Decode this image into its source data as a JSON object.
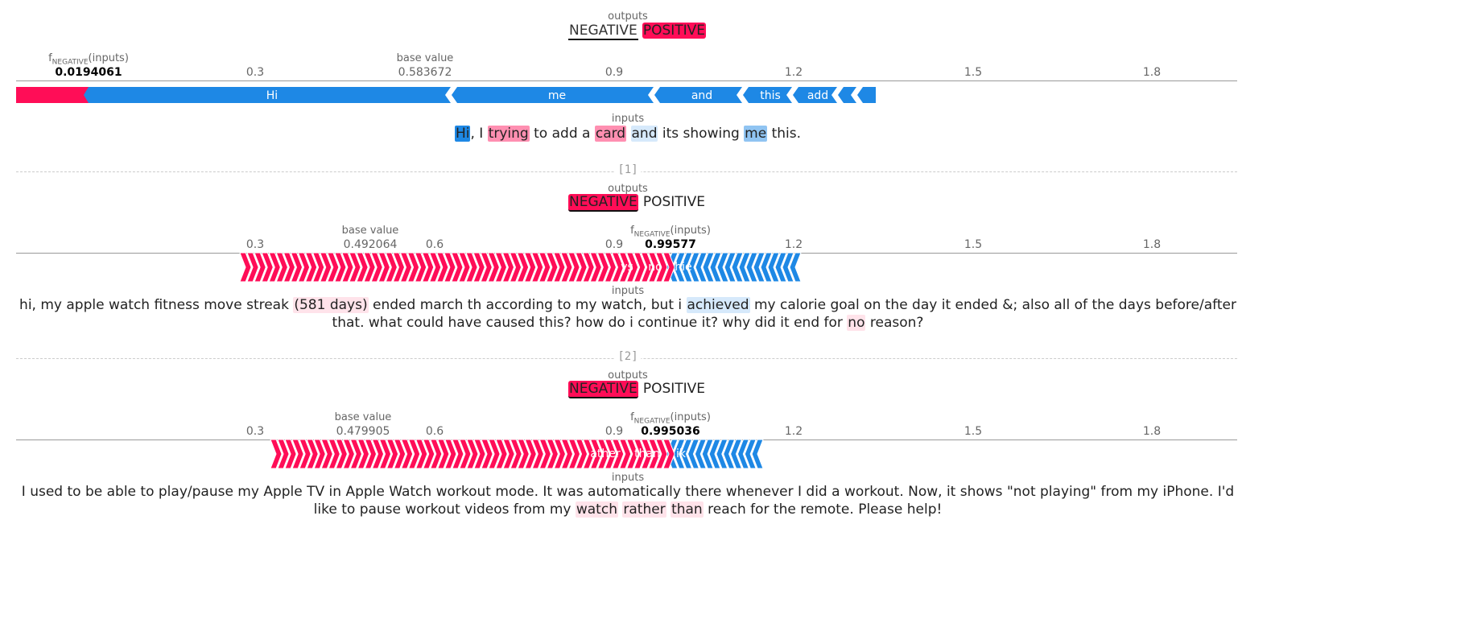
{
  "colors": {
    "positive": "#ff0d57",
    "negative": "#1e88e5",
    "axis": "#999999"
  },
  "labels": {
    "outputs": "outputs",
    "inputs": "inputs",
    "base_value": "base value",
    "f_prefix": "f",
    "f_sub": "NEGATIVE",
    "f_suffix": "(inputs)"
  },
  "classes": [
    "NEGATIVE",
    "POSITIVE"
  ],
  "ticks": [
    "0.3",
    "0.6",
    "0.9",
    "1.2",
    "1.5",
    "1.8"
  ],
  "plots": [
    {
      "index_label": "",
      "base_value": "0.583672",
      "f_value": "0.0194061",
      "tokens": [
        {
          "t": "Hi",
          "w": "neg3"
        },
        {
          "t": ", I ",
          "w": "none"
        },
        {
          "t": "trying",
          "w": "pos2"
        },
        {
          "t": " to add a ",
          "w": "none"
        },
        {
          "t": "card",
          "w": "pos2"
        },
        {
          "t": " ",
          "w": "none"
        },
        {
          "t": "and",
          "w": "neg1"
        },
        {
          "t": " its showing ",
          "w": "none"
        },
        {
          "t": "me",
          "w": "neg2"
        },
        {
          "t": " this.",
          "w": "none"
        }
      ],
      "bar_labels": [
        "Hi",
        "me",
        "and",
        "this",
        "add"
      ]
    },
    {
      "index_label": "[1]",
      "base_value": "0.492064",
      "f_value": "0.99577",
      "tokens": [
        {
          "t": "hi, my apple watch fitness move streak ",
          "w": "none"
        },
        {
          "t": "(581 days)",
          "w": "pos1"
        },
        {
          "t": " ended march th according to my watch, but i ",
          "w": "none"
        },
        {
          "t": "achieved",
          "w": "neg1"
        },
        {
          "t": " my calorie goal on the day it ended &; also all of the days before/after that. what could have caused this? how do i continue it? why did it end for ",
          "w": "none"
        },
        {
          "t": "no",
          "w": "pos1"
        },
        {
          "t": " reason?",
          "w": "none"
        }
      ],
      "bar_labels": [
        "no",
        "hie",
        "ys"
      ]
    },
    {
      "index_label": "[2]",
      "base_value": "0.479905",
      "f_value": "0.995036",
      "tokens": [
        {
          "t": "I used to be able to play/pause my Apple TV in Apple Watch workout mode. It was automatically there whenever I did a workout. Now, it shows \"not playing\" from my iPhone. I'd like to pause workout videos from my ",
          "w": "none"
        },
        {
          "t": "watch",
          "w": "pos1"
        },
        {
          "t": " ",
          "w": "none"
        },
        {
          "t": "rather",
          "w": "pos1"
        },
        {
          "t": " ",
          "w": "none"
        },
        {
          "t": "than",
          "w": "pos1"
        },
        {
          "t": " reach for the remote. Please help!",
          "w": "none"
        }
      ],
      "bar_labels": [
        "ather",
        "than",
        "ik"
      ]
    }
  ]
}
